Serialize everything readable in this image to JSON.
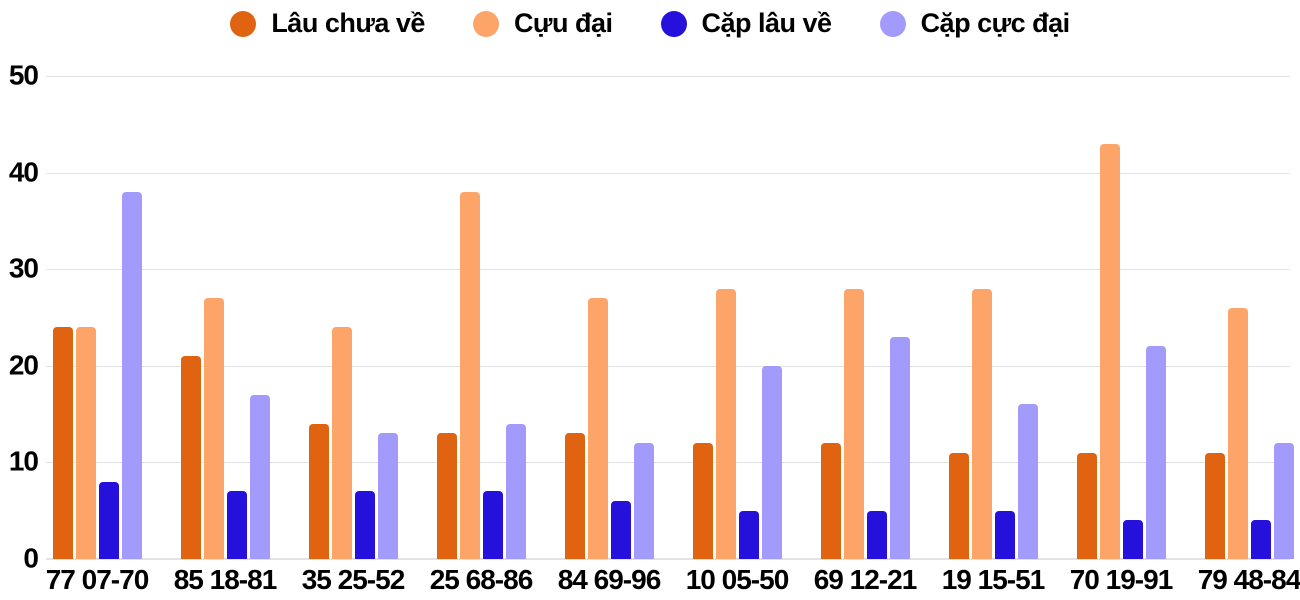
{
  "chart_data": {
    "type": "bar",
    "title": "",
    "xlabel": "",
    "ylabel": "",
    "categories": [
      "77 07-70",
      "85 18-81",
      "35 25-52",
      "25 68-86",
      "84 69-96",
      "10 05-50",
      "69 12-21",
      "19 15-51",
      "70 19-91",
      "79 48-84"
    ],
    "series": [
      {
        "name": "Lâu chưa về",
        "color": "#df6310",
        "values": [
          24,
          21,
          14,
          13,
          13,
          12,
          12,
          11,
          11,
          11
        ]
      },
      {
        "name": "Cựu đại",
        "color": "#fda569",
        "values": [
          24,
          27,
          24,
          38,
          27,
          28,
          28,
          28,
          43,
          26
        ]
      },
      {
        "name": "Cặp lâu về",
        "color": "#2510dc",
        "values": [
          8,
          7,
          7,
          7,
          6,
          5,
          5,
          5,
          4,
          4
        ]
      },
      {
        "name": "Cặp cực đại",
        "color": "#a29bfc",
        "values": [
          38,
          17,
          13,
          14,
          12,
          20,
          23,
          16,
          22,
          12
        ]
      }
    ],
    "ylim": [
      0,
      50
    ],
    "yticks": [
      0,
      10,
      20,
      30,
      40,
      50
    ],
    "grid": true,
    "legend_position": "top"
  },
  "colors": {
    "background": "#ffffff",
    "text": "#000000",
    "gridline": "#e2e2e2"
  }
}
